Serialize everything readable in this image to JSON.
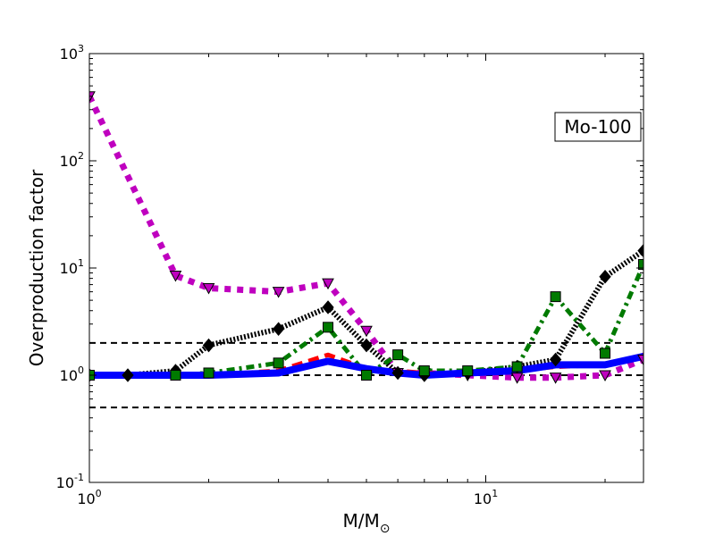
{
  "chart_data": {
    "type": "line",
    "title": "",
    "xlabel": "M/M",
    "xlabel_sub": "⊙",
    "ylabel": "Overproduction factor",
    "xscale": "log",
    "yscale": "log",
    "xlim": [
      1,
      25
    ],
    "ylim": [
      0.1,
      1000
    ],
    "x_ticks": [
      {
        "value": 1,
        "base": "10",
        "exp": "0"
      },
      {
        "value": 10,
        "base": "10",
        "exp": "1"
      }
    ],
    "y_ticks": [
      {
        "value": 0.1,
        "base": "10",
        "exp": "-1"
      },
      {
        "value": 1,
        "base": "10",
        "exp": "0"
      },
      {
        "value": 10,
        "base": "10",
        "exp": "1"
      },
      {
        "value": 100,
        "base": "10",
        "exp": "2"
      },
      {
        "value": 1000,
        "base": "10",
        "exp": "3"
      }
    ],
    "grid": false,
    "annotation": "Mo-100",
    "annotation_placement": "top-right",
    "reference_lines": [
      {
        "y": 2.0,
        "color": "#000000"
      },
      {
        "y": 1.0,
        "color": "#000000"
      },
      {
        "y": 0.5,
        "color": "#000000"
      }
    ],
    "series": [
      {
        "color": "#bf00bf",
        "style": "dotted-thick",
        "marker": "triangle-down",
        "x": [
          1.0,
          1.65,
          2.0,
          3.0,
          4.0,
          5.0,
          6.0,
          7.0,
          9.0,
          12.0,
          15.0,
          20.0,
          25.0
        ],
        "y": [
          400,
          8.5,
          6.5,
          6.0,
          7.2,
          2.6,
          1.05,
          1.05,
          1.0,
          0.95,
          0.95,
          1.0,
          1.4
        ]
      },
      {
        "color": "#000000",
        "style": "dotted-fine",
        "marker": "diamond",
        "x": [
          1.0,
          1.25,
          1.65,
          2.0,
          3.0,
          4.0,
          5.0,
          6.0,
          7.0,
          9.0,
          12.0,
          15.0,
          20.0,
          25.0
        ],
        "y": [
          1.0,
          1.0,
          1.1,
          1.9,
          2.7,
          4.3,
          1.9,
          1.05,
          1.0,
          1.05,
          1.2,
          1.4,
          8.3,
          14.5
        ]
      },
      {
        "color": "#007a00",
        "style": "dashdot",
        "marker": "square",
        "x": [
          1.0,
          1.65,
          2.0,
          3.0,
          4.0,
          5.0,
          6.0,
          7.0,
          9.0,
          12.0,
          15.0,
          20.0,
          25.0
        ],
        "y": [
          1.0,
          1.0,
          1.05,
          1.3,
          2.8,
          1.0,
          1.55,
          1.1,
          1.1,
          1.2,
          5.4,
          1.6,
          10.8
        ]
      },
      {
        "color": "#ff0000",
        "style": "dashed",
        "marker": "none",
        "x": [
          1.0,
          2.0,
          3.0,
          4.0,
          5.0,
          7.0,
          10.0,
          12.0,
          15.0,
          20.0,
          25.0
        ],
        "y": [
          1.0,
          1.0,
          1.1,
          1.55,
          1.15,
          1.05,
          1.05,
          1.1,
          1.2,
          1.25,
          1.55
        ]
      },
      {
        "color": "#0000ff",
        "style": "solid-thick",
        "marker": "none",
        "x": [
          1.0,
          1.65,
          2.0,
          3.0,
          4.0,
          5.0,
          6.0,
          7.0,
          9.0,
          12.0,
          15.0,
          20.0,
          25.0
        ],
        "y": [
          1.0,
          1.0,
          1.0,
          1.05,
          1.35,
          1.15,
          1.05,
          1.0,
          1.05,
          1.1,
          1.25,
          1.25,
          1.5
        ]
      }
    ]
  }
}
